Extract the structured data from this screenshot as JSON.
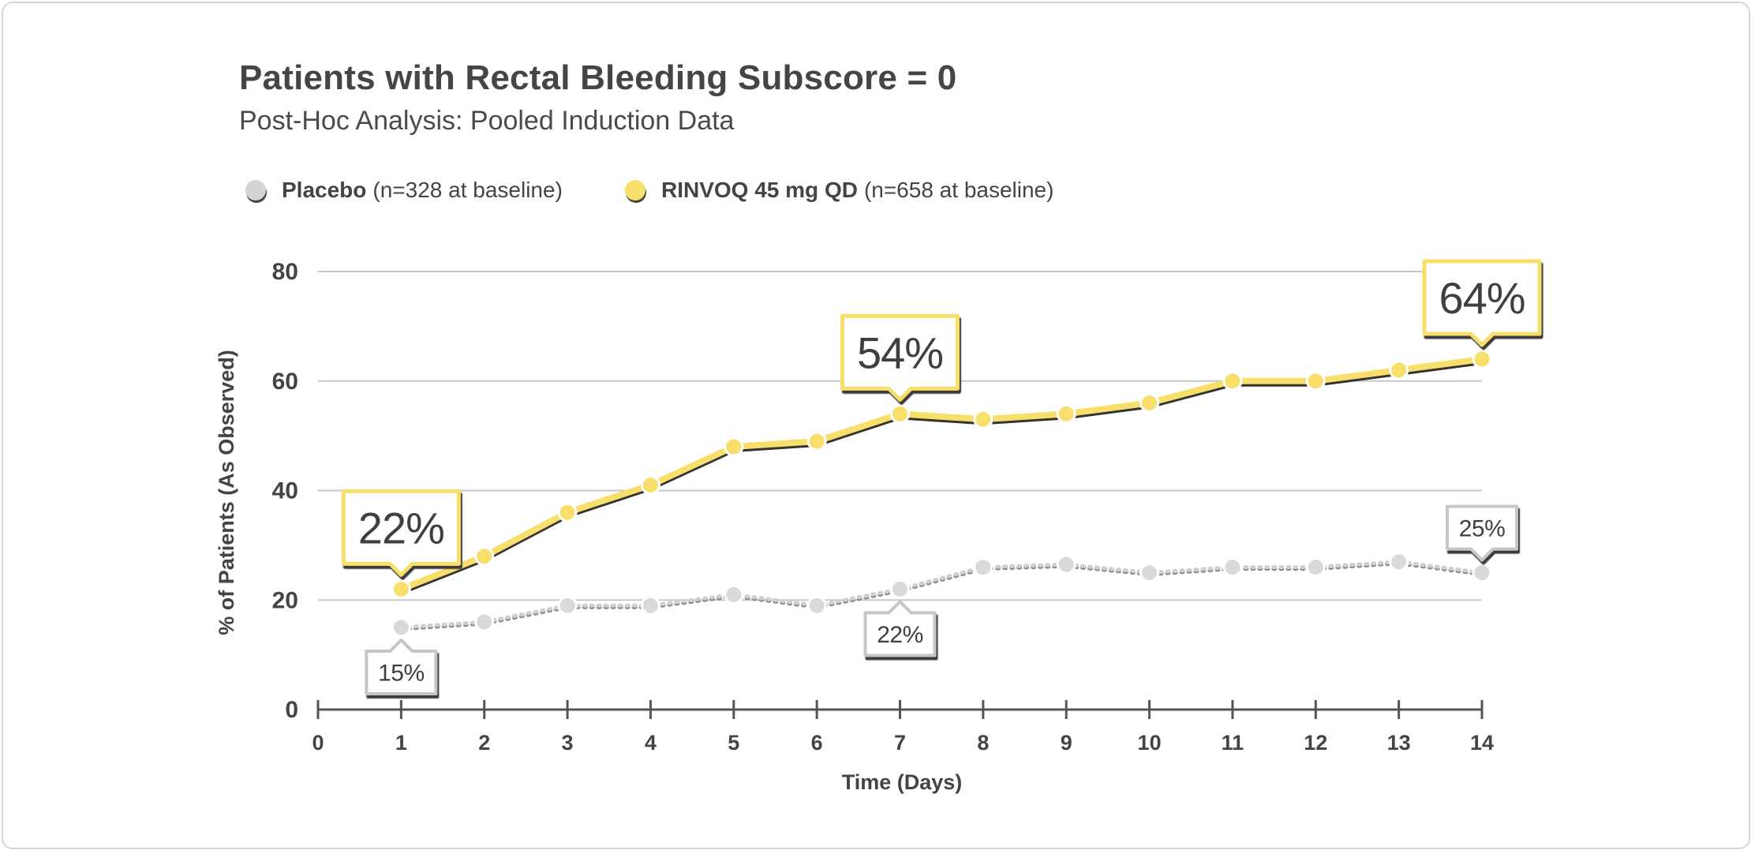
{
  "chart_data": {
    "type": "line",
    "title": "Patients with Rectal Bleeding Subscore = 0",
    "subtitle": "Post-Hoc Analysis: Pooled Induction Data",
    "xlabel": "Time (Days)",
    "ylabel": "% of Patients (As Observed)",
    "xlim": [
      0,
      14
    ],
    "ylim": [
      0,
      80
    ],
    "x_ticks": [
      0,
      1,
      2,
      3,
      4,
      5,
      6,
      7,
      8,
      9,
      10,
      11,
      12,
      13,
      14
    ],
    "y_ticks": [
      0,
      20,
      40,
      60,
      80
    ],
    "x": [
      1,
      2,
      3,
      4,
      5,
      6,
      7,
      8,
      9,
      10,
      11,
      12,
      13,
      14
    ],
    "series": [
      {
        "name": "Placebo",
        "legend_detail": "(n=328 at baseline)",
        "color": "#d4d4d4",
        "style": "dotted",
        "values": [
          15,
          16,
          19,
          19,
          21,
          19,
          22,
          26,
          26.5,
          25,
          26,
          26,
          27,
          25
        ]
      },
      {
        "name": "RINVOQ 45 mg QD",
        "legend_detail": "(n=658 at baseline)",
        "color": "#f8df6b",
        "style": "solid",
        "values": [
          22,
          28,
          36,
          41,
          48,
          49,
          54,
          53,
          54,
          56,
          60,
          60,
          62,
          64
        ]
      }
    ],
    "callouts": [
      {
        "series": 1,
        "x": 1,
        "label": "22%",
        "position": "above"
      },
      {
        "series": 1,
        "x": 7,
        "label": "54%",
        "position": "above"
      },
      {
        "series": 1,
        "x": 14,
        "label": "64%",
        "position": "above"
      },
      {
        "series": 0,
        "x": 1,
        "label": "15%",
        "position": "below"
      },
      {
        "series": 0,
        "x": 7,
        "label": "22%",
        "position": "below"
      },
      {
        "series": 0,
        "x": 14,
        "label": "25%",
        "position": "above"
      }
    ]
  }
}
